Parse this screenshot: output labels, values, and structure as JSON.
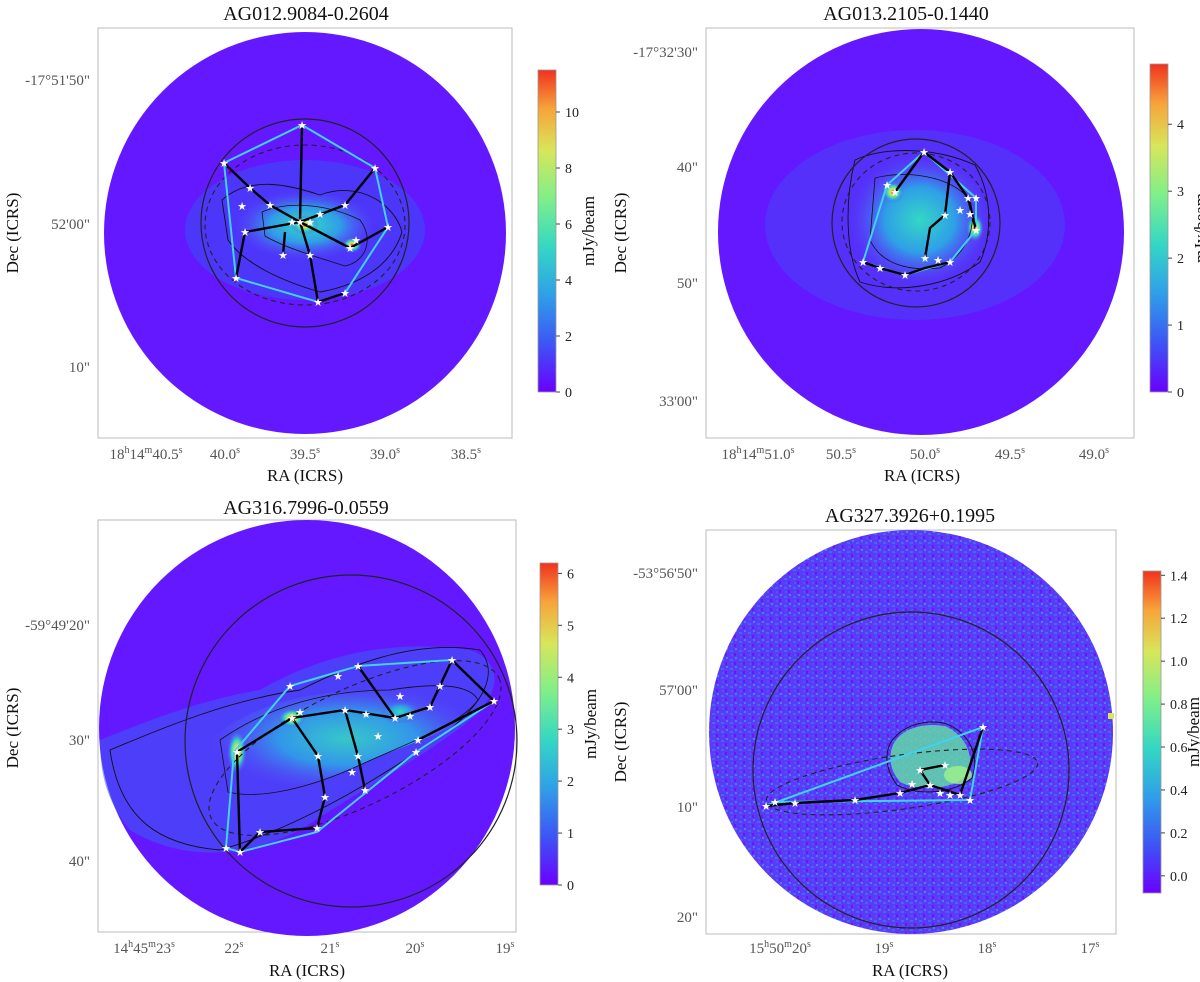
{
  "figure": {
    "colormap": [
      "#6a00ff",
      "#3d55f5",
      "#2f9fe8",
      "#34d7c4",
      "#7fef8a",
      "#d8e65a",
      "#f7a33a",
      "#f0321e"
    ],
    "colors": {
      "mst": "#000000",
      "hull": "#3fd3ee",
      "star": "#ffffff",
      "circle": "#222222"
    }
  },
  "chart_data": [
    {
      "type": "heatmap",
      "title": "AG012.9084-0.2604",
      "xlabel": "RA (ICRS)",
      "ylabel": "Dec (ICRS)",
      "xticks": [
        {
          "main": "18",
          "h": "h",
          "m1": "14",
          "m": "m",
          "sec": "40.5",
          "s": "s"
        },
        {
          "main": "40.0",
          "h": "",
          "m1": "",
          "m": "",
          "sec": "",
          "s": "s"
        },
        {
          "main": "39.5",
          "h": "",
          "m1": "",
          "m": "",
          "sec": "",
          "s": "s"
        },
        {
          "main": "39.0",
          "h": "",
          "m1": "",
          "m": "",
          "sec": "",
          "s": "s"
        },
        {
          "main": "38.5",
          "h": "",
          "m1": "",
          "m": "",
          "sec": "",
          "s": "s"
        }
      ],
      "yticks": [
        "-17°51'50\"",
        "52'00\"",
        "10\""
      ],
      "colorbar": {
        "label": "mJy/beam",
        "range": [
          0,
          11.5
        ],
        "ticks": [
          0,
          2,
          4,
          6,
          8,
          10
        ]
      }
    },
    {
      "type": "heatmap",
      "title": "AG013.2105-0.1440",
      "xlabel": "RA (ICRS)",
      "ylabel": "Dec (ICRS)",
      "xticks": [
        {
          "main": "18",
          "h": "h",
          "m1": "14",
          "m": "m",
          "sec": "51.0",
          "s": "s"
        },
        {
          "main": "50.5",
          "h": "",
          "m1": "",
          "m": "",
          "sec": "",
          "s": "s"
        },
        {
          "main": "50.0",
          "h": "",
          "m1": "",
          "m": "",
          "sec": "",
          "s": "s"
        },
        {
          "main": "49.5",
          "h": "",
          "m1": "",
          "m": "",
          "sec": "",
          "s": "s"
        },
        {
          "main": "49.0",
          "h": "",
          "m1": "",
          "m": "",
          "sec": "",
          "s": "s"
        }
      ],
      "yticks": [
        "-17°32'30\"",
        "40\"",
        "50\"",
        "33'00\""
      ],
      "colorbar": {
        "label": "mJy/beam",
        "range": [
          0,
          4.9
        ],
        "ticks": [
          0,
          1,
          2,
          3,
          4
        ]
      }
    },
    {
      "type": "heatmap",
      "title": "AG316.7996-0.0559",
      "xlabel": "RA (ICRS)",
      "ylabel": "Dec (ICRS)",
      "xticks": [
        {
          "main": "14",
          "h": "h",
          "m1": "45",
          "m": "m",
          "sec": "23",
          "s": "s"
        },
        {
          "main": "22",
          "h": "",
          "m1": "",
          "m": "",
          "sec": "",
          "s": "s"
        },
        {
          "main": "21",
          "h": "",
          "m1": "",
          "m": "",
          "sec": "",
          "s": "s"
        },
        {
          "main": "20",
          "h": "",
          "m1": "",
          "m": "",
          "sec": "",
          "s": "s"
        },
        {
          "main": "19",
          "h": "",
          "m1": "",
          "m": "",
          "sec": "",
          "s": "s"
        }
      ],
      "yticks": [
        "-59°49'20\"",
        "30\"",
        "40\""
      ],
      "colorbar": {
        "label": "mJy/beam",
        "range": [
          0,
          6.2
        ],
        "ticks": [
          0,
          1,
          2,
          3,
          4,
          5,
          6
        ]
      }
    },
    {
      "type": "heatmap",
      "title": "AG327.3926+0.1995",
      "xlabel": "RA (ICRS)",
      "ylabel": "Dec (ICRS)",
      "xticks": [
        {
          "main": "15",
          "h": "h",
          "m1": "50",
          "m": "m",
          "sec": "20",
          "s": "s"
        },
        {
          "main": "19",
          "h": "",
          "m1": "",
          "m": "",
          "sec": "",
          "s": "s"
        },
        {
          "main": "18",
          "h": "",
          "m1": "",
          "m": "",
          "sec": "",
          "s": "s"
        },
        {
          "main": "17",
          "h": "",
          "m1": "",
          "m": "",
          "sec": "",
          "s": "s"
        }
      ],
      "yticks": [
        "-53°56'50\"",
        "57'00\"",
        "10\"",
        "20\""
      ],
      "colorbar": {
        "label": "mJy/beam",
        "range": [
          -0.08,
          1.42
        ],
        "ticks": [
          0.0,
          0.2,
          0.4,
          0.6,
          0.8,
          1.0,
          1.2,
          1.4
        ]
      }
    }
  ]
}
